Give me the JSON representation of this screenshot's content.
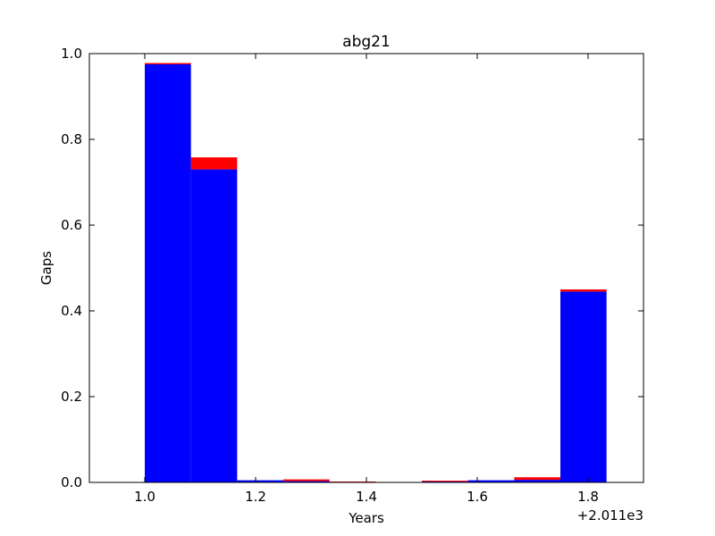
{
  "chart_data": {
    "type": "bar",
    "stacked": true,
    "title": "abg21",
    "xlabel": "Years",
    "ylabel": "Gaps",
    "x_offset_label": "+2.011e3",
    "xlim": [
      0.9,
      1.9
    ],
    "ylim": [
      0.0,
      1.0
    ],
    "xticks": [
      "1.0",
      "1.2",
      "1.4",
      "1.6",
      "1.8"
    ],
    "yticks": [
      "0.0",
      "0.2",
      "0.4",
      "0.6",
      "0.8",
      "1.0"
    ],
    "bin_edges": [
      1.0,
      1.0833,
      1.1667,
      1.25,
      1.3333,
      1.4167,
      1.5,
      1.5833,
      1.6667,
      1.75,
      1.8333
    ],
    "series": [
      {
        "color": "#0000ff",
        "values": [
          0.975,
          0.73,
          0.005,
          0.003,
          0.001,
          0.0,
          0.002,
          0.005,
          0.006,
          0.445
        ]
      },
      {
        "color": "#ff0000",
        "values": [
          0.003,
          0.028,
          0.0,
          0.004,
          0.001,
          0.0,
          0.002,
          0.0,
          0.006,
          0.005
        ]
      }
    ],
    "grid": false
  }
}
